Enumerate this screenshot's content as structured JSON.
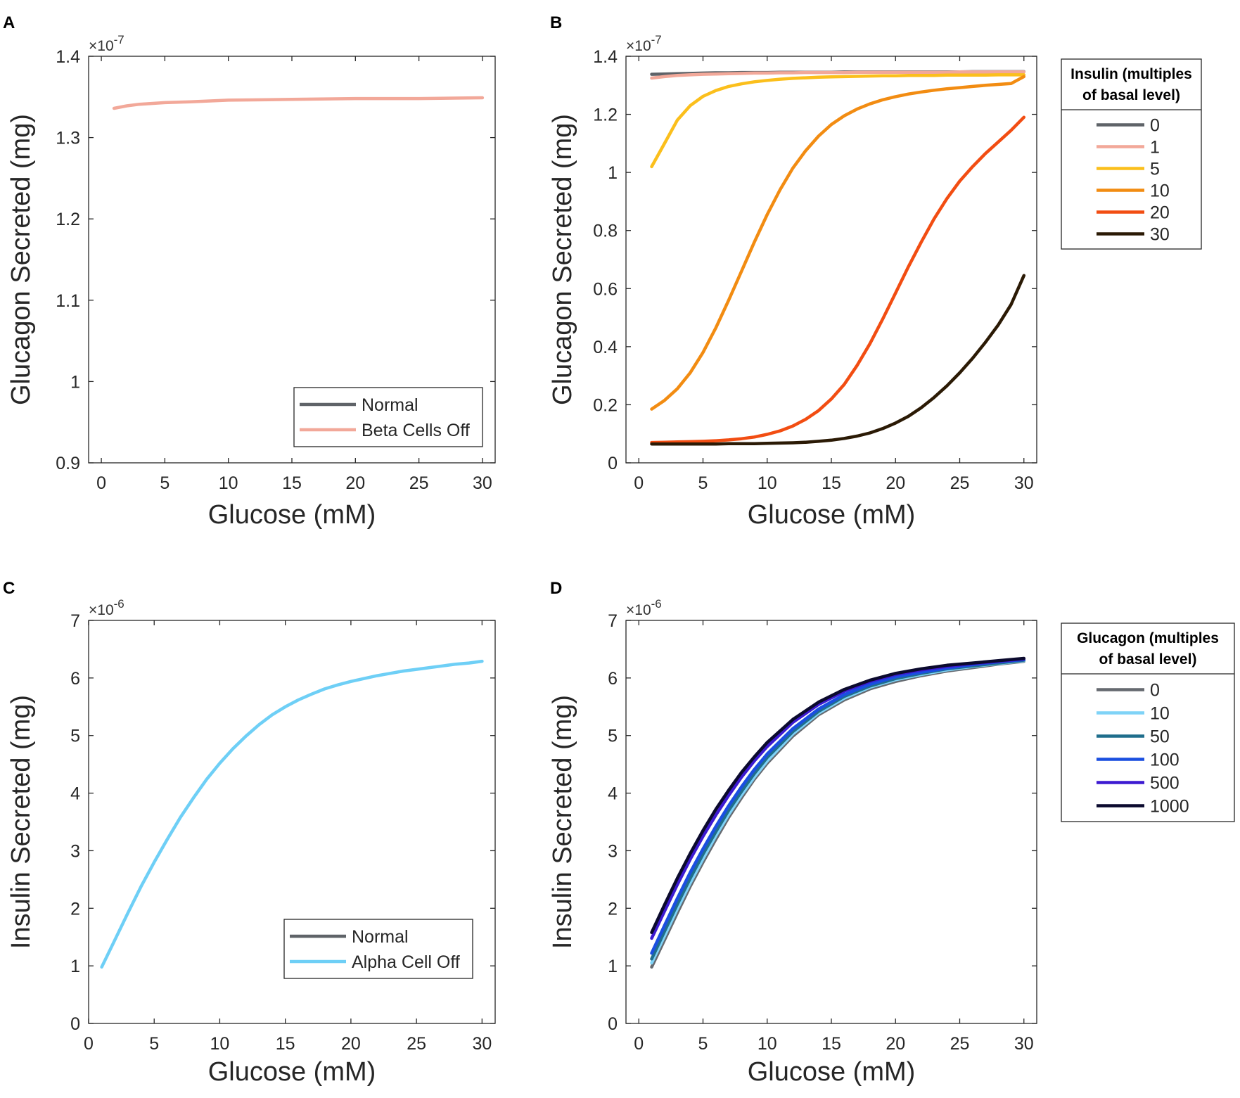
{
  "chart_data": [
    {
      "panel": "A",
      "type": "line",
      "xlabel": "Glucose (mM)",
      "ylabel": "Glucagon Secreted (mg)",
      "xlim": [
        -1,
        31
      ],
      "ylim": [
        0.9,
        1.4
      ],
      "xticks": [
        0,
        5,
        10,
        15,
        20,
        25,
        30
      ],
      "xtick_labels": [
        "0",
        "5",
        "10",
        "15",
        "20",
        "25",
        "30"
      ],
      "yticks": [
        0.9,
        1.0,
        1.1,
        1.2,
        1.3,
        1.4
      ],
      "ytick_labels": [
        "0.9",
        "1",
        "1.1",
        "1.2",
        "1.3",
        "1.4"
      ],
      "multiplier": "×10",
      "multiplier_exp": "-7",
      "legend_title": "",
      "legend_position": "bottom-right",
      "x": [
        1,
        2,
        3,
        5,
        7,
        10,
        15,
        20,
        25,
        30
      ],
      "series": [
        {
          "name": "Normal",
          "color": "#5f6368",
          "values": [
            1.336,
            1.339,
            1.341,
            1.343,
            1.344,
            1.346,
            1.347,
            1.348,
            1.348,
            1.349
          ]
        },
        {
          "name": "Beta Cells Off",
          "color": "#f2a899",
          "values": [
            1.336,
            1.339,
            1.341,
            1.343,
            1.344,
            1.346,
            1.347,
            1.348,
            1.348,
            1.349
          ]
        }
      ],
      "draw_order": [
        1
      ]
    },
    {
      "panel": "B",
      "type": "line",
      "xlabel": "Glucose (mM)",
      "ylabel": "Glucagon Secreted (mg)",
      "xlim": [
        -1,
        31
      ],
      "ylim": [
        0,
        1.4
      ],
      "xticks": [
        0,
        5,
        10,
        15,
        20,
        25,
        30
      ],
      "xtick_labels": [
        "0",
        "5",
        "10",
        "15",
        "20",
        "25",
        "30"
      ],
      "yticks": [
        0,
        0.2,
        0.4,
        0.6,
        0.8,
        1.0,
        1.2,
        1.4
      ],
      "ytick_labels": [
        "0",
        "0.2",
        "0.4",
        "0.6",
        "0.8",
        "1",
        "1.2",
        "1.4"
      ],
      "multiplier": "×10",
      "multiplier_exp": "-7",
      "legend_title": [
        "Insulin (multiples",
        "of basal level)"
      ],
      "legend_position": "outside-right",
      "x": [
        1,
        2,
        3,
        4,
        5,
        6,
        7,
        8,
        9,
        10,
        11,
        12,
        13,
        14,
        15,
        16,
        17,
        18,
        19,
        20,
        21,
        22,
        23,
        24,
        25,
        26,
        27,
        28,
        29,
        30
      ],
      "series": [
        {
          "name": "0",
          "color": "#5f6368",
          "values": [
            1.338,
            1.339,
            1.34,
            1.341,
            1.342,
            1.343,
            1.343,
            1.344,
            1.344,
            1.344,
            1.345,
            1.345,
            1.345,
            1.345,
            1.345,
            1.346,
            1.346,
            1.346,
            1.346,
            1.346,
            1.346,
            1.346,
            1.346,
            1.346,
            1.346,
            1.347,
            1.347,
            1.347,
            1.347,
            1.347
          ]
        },
        {
          "name": "1",
          "color": "#f2a899",
          "values": [
            1.325,
            1.33,
            1.334,
            1.336,
            1.338,
            1.339,
            1.34,
            1.341,
            1.342,
            1.342,
            1.343,
            1.343,
            1.344,
            1.344,
            1.344,
            1.344,
            1.345,
            1.345,
            1.345,
            1.345,
            1.345,
            1.345,
            1.345,
            1.345,
            1.346,
            1.346,
            1.346,
            1.346,
            1.346,
            1.346
          ]
        },
        {
          "name": "5",
          "color": "#fbbf1c",
          "values": [
            1.02,
            1.1,
            1.18,
            1.23,
            1.262,
            1.282,
            1.296,
            1.305,
            1.312,
            1.317,
            1.321,
            1.324,
            1.326,
            1.328,
            1.329,
            1.33,
            1.331,
            1.332,
            1.333,
            1.333,
            1.334,
            1.334,
            1.334,
            1.335,
            1.335,
            1.335,
            1.335,
            1.336,
            1.336,
            1.336
          ]
        },
        {
          "name": "10",
          "color": "#f28c12",
          "values": [
            0.185,
            0.215,
            0.255,
            0.31,
            0.38,
            0.465,
            0.56,
            0.66,
            0.76,
            0.855,
            0.94,
            1.015,
            1.075,
            1.125,
            1.165,
            1.195,
            1.218,
            1.236,
            1.25,
            1.261,
            1.27,
            1.277,
            1.283,
            1.288,
            1.292,
            1.296,
            1.3,
            1.303,
            1.306,
            1.33
          ]
        },
        {
          "name": "20",
          "color": "#f24d12",
          "values": [
            0.07,
            0.071,
            0.072,
            0.073,
            0.074,
            0.076,
            0.079,
            0.083,
            0.089,
            0.098,
            0.11,
            0.127,
            0.15,
            0.18,
            0.22,
            0.27,
            0.335,
            0.41,
            0.495,
            0.585,
            0.675,
            0.76,
            0.84,
            0.91,
            0.97,
            1.02,
            1.065,
            1.105,
            1.145,
            1.19
          ]
        },
        {
          "name": "30",
          "color": "#2b1a05",
          "values": [
            0.065,
            0.065,
            0.065,
            0.065,
            0.065,
            0.065,
            0.066,
            0.066,
            0.066,
            0.067,
            0.068,
            0.069,
            0.071,
            0.074,
            0.078,
            0.084,
            0.092,
            0.103,
            0.118,
            0.137,
            0.16,
            0.19,
            0.225,
            0.265,
            0.31,
            0.36,
            0.415,
            0.475,
            0.545,
            0.645
          ]
        }
      ],
      "draw_order": [
        0,
        1,
        2,
        3,
        4,
        5
      ]
    },
    {
      "panel": "C",
      "type": "line",
      "xlabel": "Glucose (mM)",
      "ylabel": "Insulin Secreted (mg)",
      "xlim": [
        0,
        31
      ],
      "ylim": [
        0,
        7
      ],
      "xticks": [
        0,
        5,
        10,
        15,
        20,
        25,
        30
      ],
      "xtick_labels": [
        "0",
        "5",
        "10",
        "15",
        "20",
        "25",
        "30"
      ],
      "yticks": [
        0,
        1,
        2,
        3,
        4,
        5,
        6,
        7
      ],
      "ytick_labels": [
        "0",
        "1",
        "2",
        "3",
        "4",
        "5",
        "6",
        "7"
      ],
      "multiplier": "×10",
      "multiplier_exp": "-6",
      "legend_title": "",
      "legend_position": "bottom-right",
      "x": [
        1,
        2,
        3,
        4,
        5,
        6,
        7,
        8,
        9,
        10,
        11,
        12,
        13,
        14,
        15,
        16,
        17,
        18,
        19,
        20,
        21,
        22,
        23,
        24,
        25,
        26,
        27,
        28,
        29,
        30
      ],
      "series": [
        {
          "name": "Normal",
          "color": "#5f6368",
          "values": [
            0.98,
            1.45,
            1.92,
            2.38,
            2.8,
            3.2,
            3.58,
            3.92,
            4.24,
            4.52,
            4.77,
            4.99,
            5.19,
            5.36,
            5.5,
            5.62,
            5.72,
            5.81,
            5.88,
            5.94,
            5.99,
            6.04,
            6.08,
            6.12,
            6.15,
            6.18,
            6.21,
            6.24,
            6.26,
            6.29
          ]
        },
        {
          "name": "Alpha Cell Off",
          "color": "#6ecff6",
          "values": [
            0.98,
            1.45,
            1.92,
            2.38,
            2.8,
            3.2,
            3.58,
            3.92,
            4.24,
            4.52,
            4.77,
            4.99,
            5.19,
            5.36,
            5.5,
            5.62,
            5.72,
            5.81,
            5.88,
            5.94,
            5.99,
            6.04,
            6.08,
            6.12,
            6.15,
            6.18,
            6.21,
            6.24,
            6.26,
            6.29
          ]
        }
      ],
      "draw_order": [
        1
      ]
    },
    {
      "panel": "D",
      "type": "line",
      "xlabel": "Glucose (mM)",
      "ylabel": "Insulin Secreted (mg)",
      "xlim": [
        -1,
        31
      ],
      "ylim": [
        0,
        7
      ],
      "xticks": [
        0,
        5,
        10,
        15,
        20,
        25,
        30
      ],
      "xtick_labels": [
        "0",
        "5",
        "10",
        "15",
        "20",
        "25",
        "30"
      ],
      "yticks": [
        0,
        1,
        2,
        3,
        4,
        5,
        6,
        7
      ],
      "ytick_labels": [
        "0",
        "1",
        "2",
        "3",
        "4",
        "5",
        "6",
        "7"
      ],
      "multiplier": "×10",
      "multiplier_exp": "-6",
      "legend_title": [
        "Glucagon (multiples",
        "of basal level)"
      ],
      "legend_position": "outside-right",
      "x": [
        1,
        2,
        3,
        4,
        5,
        6,
        7,
        8,
        9,
        10,
        12,
        14,
        16,
        18,
        20,
        22,
        24,
        26,
        28,
        30
      ],
      "series": [
        {
          "name": "0",
          "color": "#666a70",
          "values": [
            0.98,
            1.45,
            1.92,
            2.38,
            2.8,
            3.2,
            3.58,
            3.92,
            4.24,
            4.52,
            4.99,
            5.36,
            5.62,
            5.81,
            5.94,
            6.04,
            6.12,
            6.18,
            6.24,
            6.29
          ]
        },
        {
          "name": "10",
          "color": "#7fd3f7",
          "values": [
            1.05,
            1.52,
            1.99,
            2.44,
            2.86,
            3.26,
            3.63,
            3.97,
            4.28,
            4.56,
            5.03,
            5.39,
            5.65,
            5.84,
            5.97,
            6.06,
            6.14,
            6.2,
            6.25,
            6.3
          ]
        },
        {
          "name": "50",
          "color": "#1f6e8c",
          "values": [
            1.12,
            1.6,
            2.07,
            2.52,
            2.94,
            3.33,
            3.7,
            4.03,
            4.34,
            4.62,
            5.07,
            5.42,
            5.68,
            5.86,
            5.99,
            6.08,
            6.16,
            6.21,
            6.26,
            6.31
          ]
        },
        {
          "name": "100",
          "color": "#1a4fe0",
          "values": [
            1.22,
            1.7,
            2.17,
            2.62,
            3.03,
            3.42,
            3.78,
            4.11,
            4.41,
            4.68,
            5.12,
            5.46,
            5.71,
            5.89,
            6.02,
            6.1,
            6.17,
            6.23,
            6.28,
            6.32
          ]
        },
        {
          "name": "500",
          "color": "#3d1ad1",
          "values": [
            1.48,
            1.95,
            2.41,
            2.85,
            3.25,
            3.62,
            3.96,
            4.28,
            4.56,
            4.81,
            5.23,
            5.54,
            5.77,
            5.94,
            6.06,
            6.14,
            6.2,
            6.25,
            6.29,
            6.33
          ]
        },
        {
          "name": "1000",
          "color": "#0b0a2e",
          "values": [
            1.58,
            2.06,
            2.52,
            2.95,
            3.35,
            3.72,
            4.05,
            4.36,
            4.63,
            4.88,
            5.28,
            5.58,
            5.8,
            5.96,
            6.08,
            6.16,
            6.22,
            6.26,
            6.3,
            6.34
          ]
        }
      ],
      "draw_order": [
        0,
        1,
        2,
        3,
        4,
        5
      ]
    }
  ]
}
